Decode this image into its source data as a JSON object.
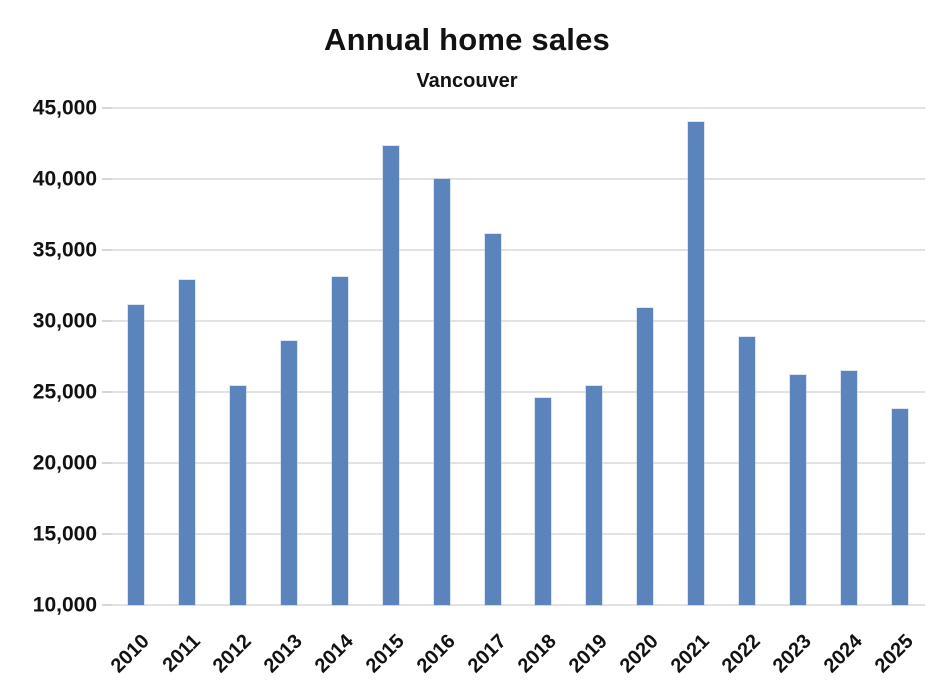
{
  "chart_data": {
    "type": "bar",
    "title": "Annual home sales",
    "subtitle": "Vancouver",
    "categories": [
      "2010",
      "2011",
      "2012",
      "2013",
      "2014",
      "2015",
      "2016",
      "2017",
      "2018",
      "2019",
      "2020",
      "2021",
      "2022",
      "2023",
      "2024",
      "2025"
    ],
    "values": [
      31100,
      32900,
      25400,
      28600,
      33100,
      42300,
      40000,
      36100,
      24600,
      25400,
      30900,
      44000,
      28900,
      26200,
      26500,
      23800
    ],
    "xlabel": "",
    "ylabel": "",
    "ylim": [
      10000,
      45000
    ],
    "ytick_step": 5000,
    "y_tick_labels": [
      "10,000",
      "15,000",
      "20,000",
      "25,000",
      "30,000",
      "35,000",
      "40,000",
      "45,000"
    ],
    "grid": true,
    "legend_position": "none",
    "bar_color": "#5b84bd",
    "gridline_color": "#e2e2e2",
    "text_color": "#121212",
    "background_color": "#ffffff"
  }
}
